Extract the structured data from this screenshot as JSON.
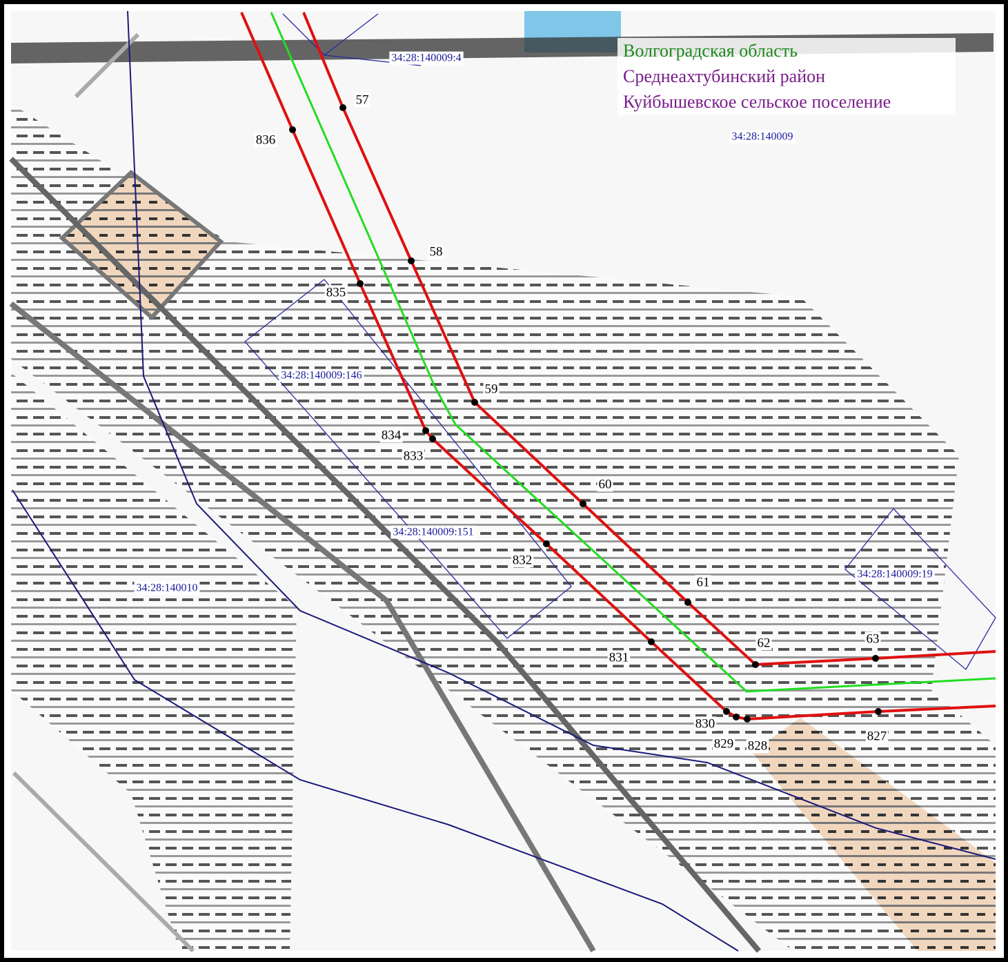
{
  "region": {
    "oblast": "Волгоградская область",
    "raion": "Среднеахтубинский район",
    "settlement": "Куйбышевское сельское поселение"
  },
  "parcels": [
    "34:28:140009:4",
    "34:28:140009",
    "34:28:140009:146",
    "34:28:140009:151",
    "34:28:140009:19",
    "34:28:140010"
  ],
  "points": [
    "57",
    "836",
    "58",
    "835",
    "59",
    "834",
    "833",
    "60",
    "832",
    "61",
    "831",
    "62",
    "63",
    "830",
    "829",
    "828",
    "827"
  ]
}
